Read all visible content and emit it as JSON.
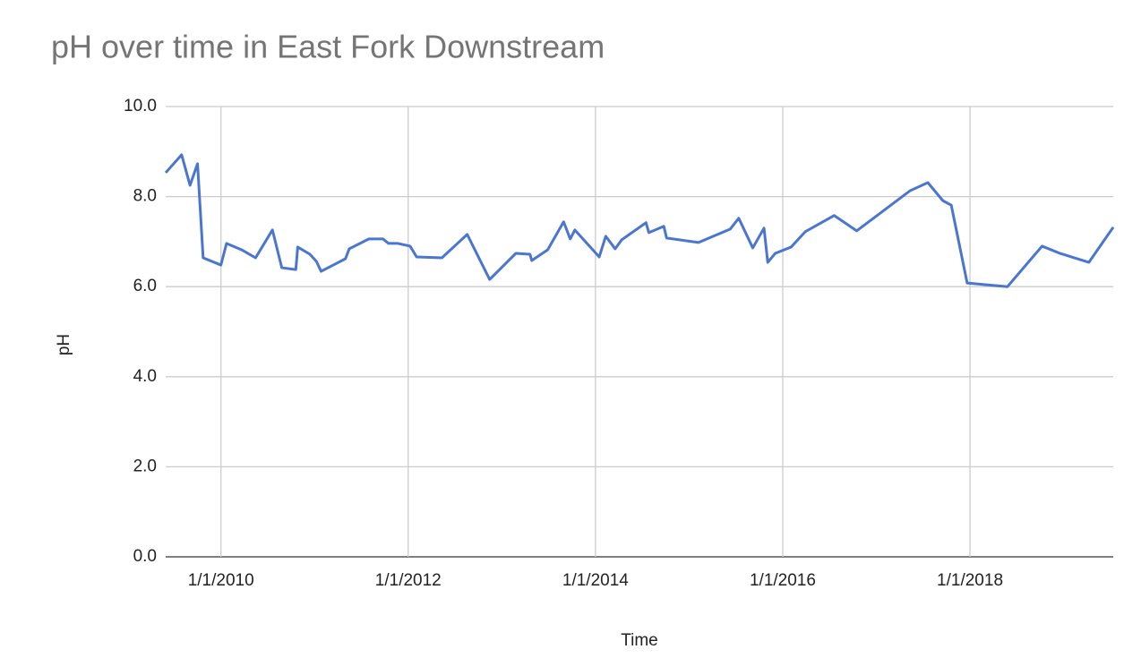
{
  "chart_data": {
    "type": "line",
    "title": "pH over time in East Fork Downstream",
    "x_label": "Time",
    "y_label": "pH",
    "x": [
      2009.41,
      2009.58,
      2009.67,
      2009.75,
      2009.81,
      2010.0,
      2010.06,
      2010.22,
      2010.37,
      2010.55,
      2010.65,
      2010.8,
      2010.82,
      2010.95,
      2011.02,
      2011.07,
      2011.33,
      2011.37,
      2011.58,
      2011.73,
      2011.79,
      2011.89,
      2012.02,
      2012.09,
      2012.36,
      2012.63,
      2012.87,
      2013.15,
      2013.3,
      2013.32,
      2013.49,
      2013.66,
      2013.73,
      2013.78,
      2014.04,
      2014.11,
      2014.21,
      2014.28,
      2014.54,
      2014.57,
      2014.73,
      2014.76,
      2015.1,
      2015.44,
      2015.53,
      2015.68,
      2015.8,
      2015.84,
      2015.92,
      2016.09,
      2016.24,
      2016.55,
      2016.79,
      2017.36,
      2017.55,
      2017.71,
      2017.8,
      2017.97,
      2018.4,
      2018.77,
      2018.96,
      2019.27,
      2019.53
    ],
    "series": [
      {
        "name": "pH",
        "color": "#4a76d0",
        "values": [
          8.53,
          8.93,
          8.25,
          8.73,
          6.64,
          6.48,
          6.96,
          6.82,
          6.64,
          7.26,
          6.42,
          6.38,
          6.88,
          6.72,
          6.56,
          6.34,
          6.62,
          6.84,
          7.06,
          7.06,
          6.96,
          6.96,
          6.9,
          6.66,
          6.64,
          7.16,
          6.16,
          6.74,
          6.72,
          6.58,
          6.82,
          7.44,
          7.06,
          7.26,
          6.66,
          7.12,
          6.84,
          7.04,
          7.42,
          7.2,
          7.34,
          7.08,
          6.98,
          7.28,
          7.52,
          6.86,
          7.3,
          6.54,
          6.74,
          6.88,
          7.22,
          7.58,
          7.24,
          8.13,
          8.31,
          7.91,
          7.81,
          6.08,
          6.0,
          6.9,
          6.74,
          6.54,
          7.32
        ]
      }
    ],
    "xlim": [
      2009.41,
      2019.53
    ],
    "xticks": [
      {
        "value": 2010,
        "label": "1/1/2010"
      },
      {
        "value": 2012,
        "label": "1/1/2012"
      },
      {
        "value": 2014,
        "label": "1/1/2014"
      },
      {
        "value": 2016,
        "label": "1/1/2016"
      },
      {
        "value": 2018,
        "label": "1/1/2018"
      }
    ],
    "ylim": [
      0,
      10
    ],
    "yticks": [
      {
        "value": 0,
        "label": "0.0"
      },
      {
        "value": 2,
        "label": "2.0"
      },
      {
        "value": 4,
        "label": "4.0"
      },
      {
        "value": 6,
        "label": "6.0"
      },
      {
        "value": 8,
        "label": "8.0"
      },
      {
        "value": 10,
        "label": "10.0"
      }
    ],
    "grid": true
  }
}
